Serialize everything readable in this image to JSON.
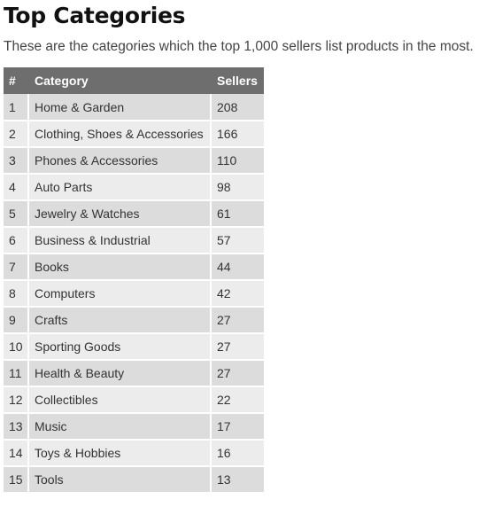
{
  "page": {
    "title": "Top Categories",
    "intro": "These are the categories which the top 1,000 sellers list products in the most."
  },
  "table": {
    "headers": [
      "#",
      "Category",
      "Sellers"
    ],
    "rows": [
      {
        "rank": "1",
        "category": "Home & Garden",
        "sellers": "208"
      },
      {
        "rank": "2",
        "category": "Clothing, Shoes & Accessories",
        "sellers": "166"
      },
      {
        "rank": "3",
        "category": "Phones & Accessories",
        "sellers": "110"
      },
      {
        "rank": "4",
        "category": "Auto Parts",
        "sellers": "98"
      },
      {
        "rank": "5",
        "category": "Jewelry & Watches",
        "sellers": "61"
      },
      {
        "rank": "6",
        "category": "Business & Industrial",
        "sellers": "57"
      },
      {
        "rank": "7",
        "category": "Books",
        "sellers": "44"
      },
      {
        "rank": "8",
        "category": "Computers",
        "sellers": "42"
      },
      {
        "rank": "9",
        "category": "Crafts",
        "sellers": "27"
      },
      {
        "rank": "10",
        "category": "Sporting Goods",
        "sellers": "27"
      },
      {
        "rank": "11",
        "category": "Health & Beauty",
        "sellers": "27"
      },
      {
        "rank": "12",
        "category": "Collectibles",
        "sellers": "22"
      },
      {
        "rank": "13",
        "category": "Music",
        "sellers": "17"
      },
      {
        "rank": "14",
        "category": "Toys & Hobbies",
        "sellers": "16"
      },
      {
        "rank": "15",
        "category": "Tools",
        "sellers": "13"
      }
    ]
  },
  "colors": {
    "header_bg": "#6e6e6e",
    "row_odd_bg": "#dcdcdc",
    "row_even_bg": "#ececec"
  }
}
